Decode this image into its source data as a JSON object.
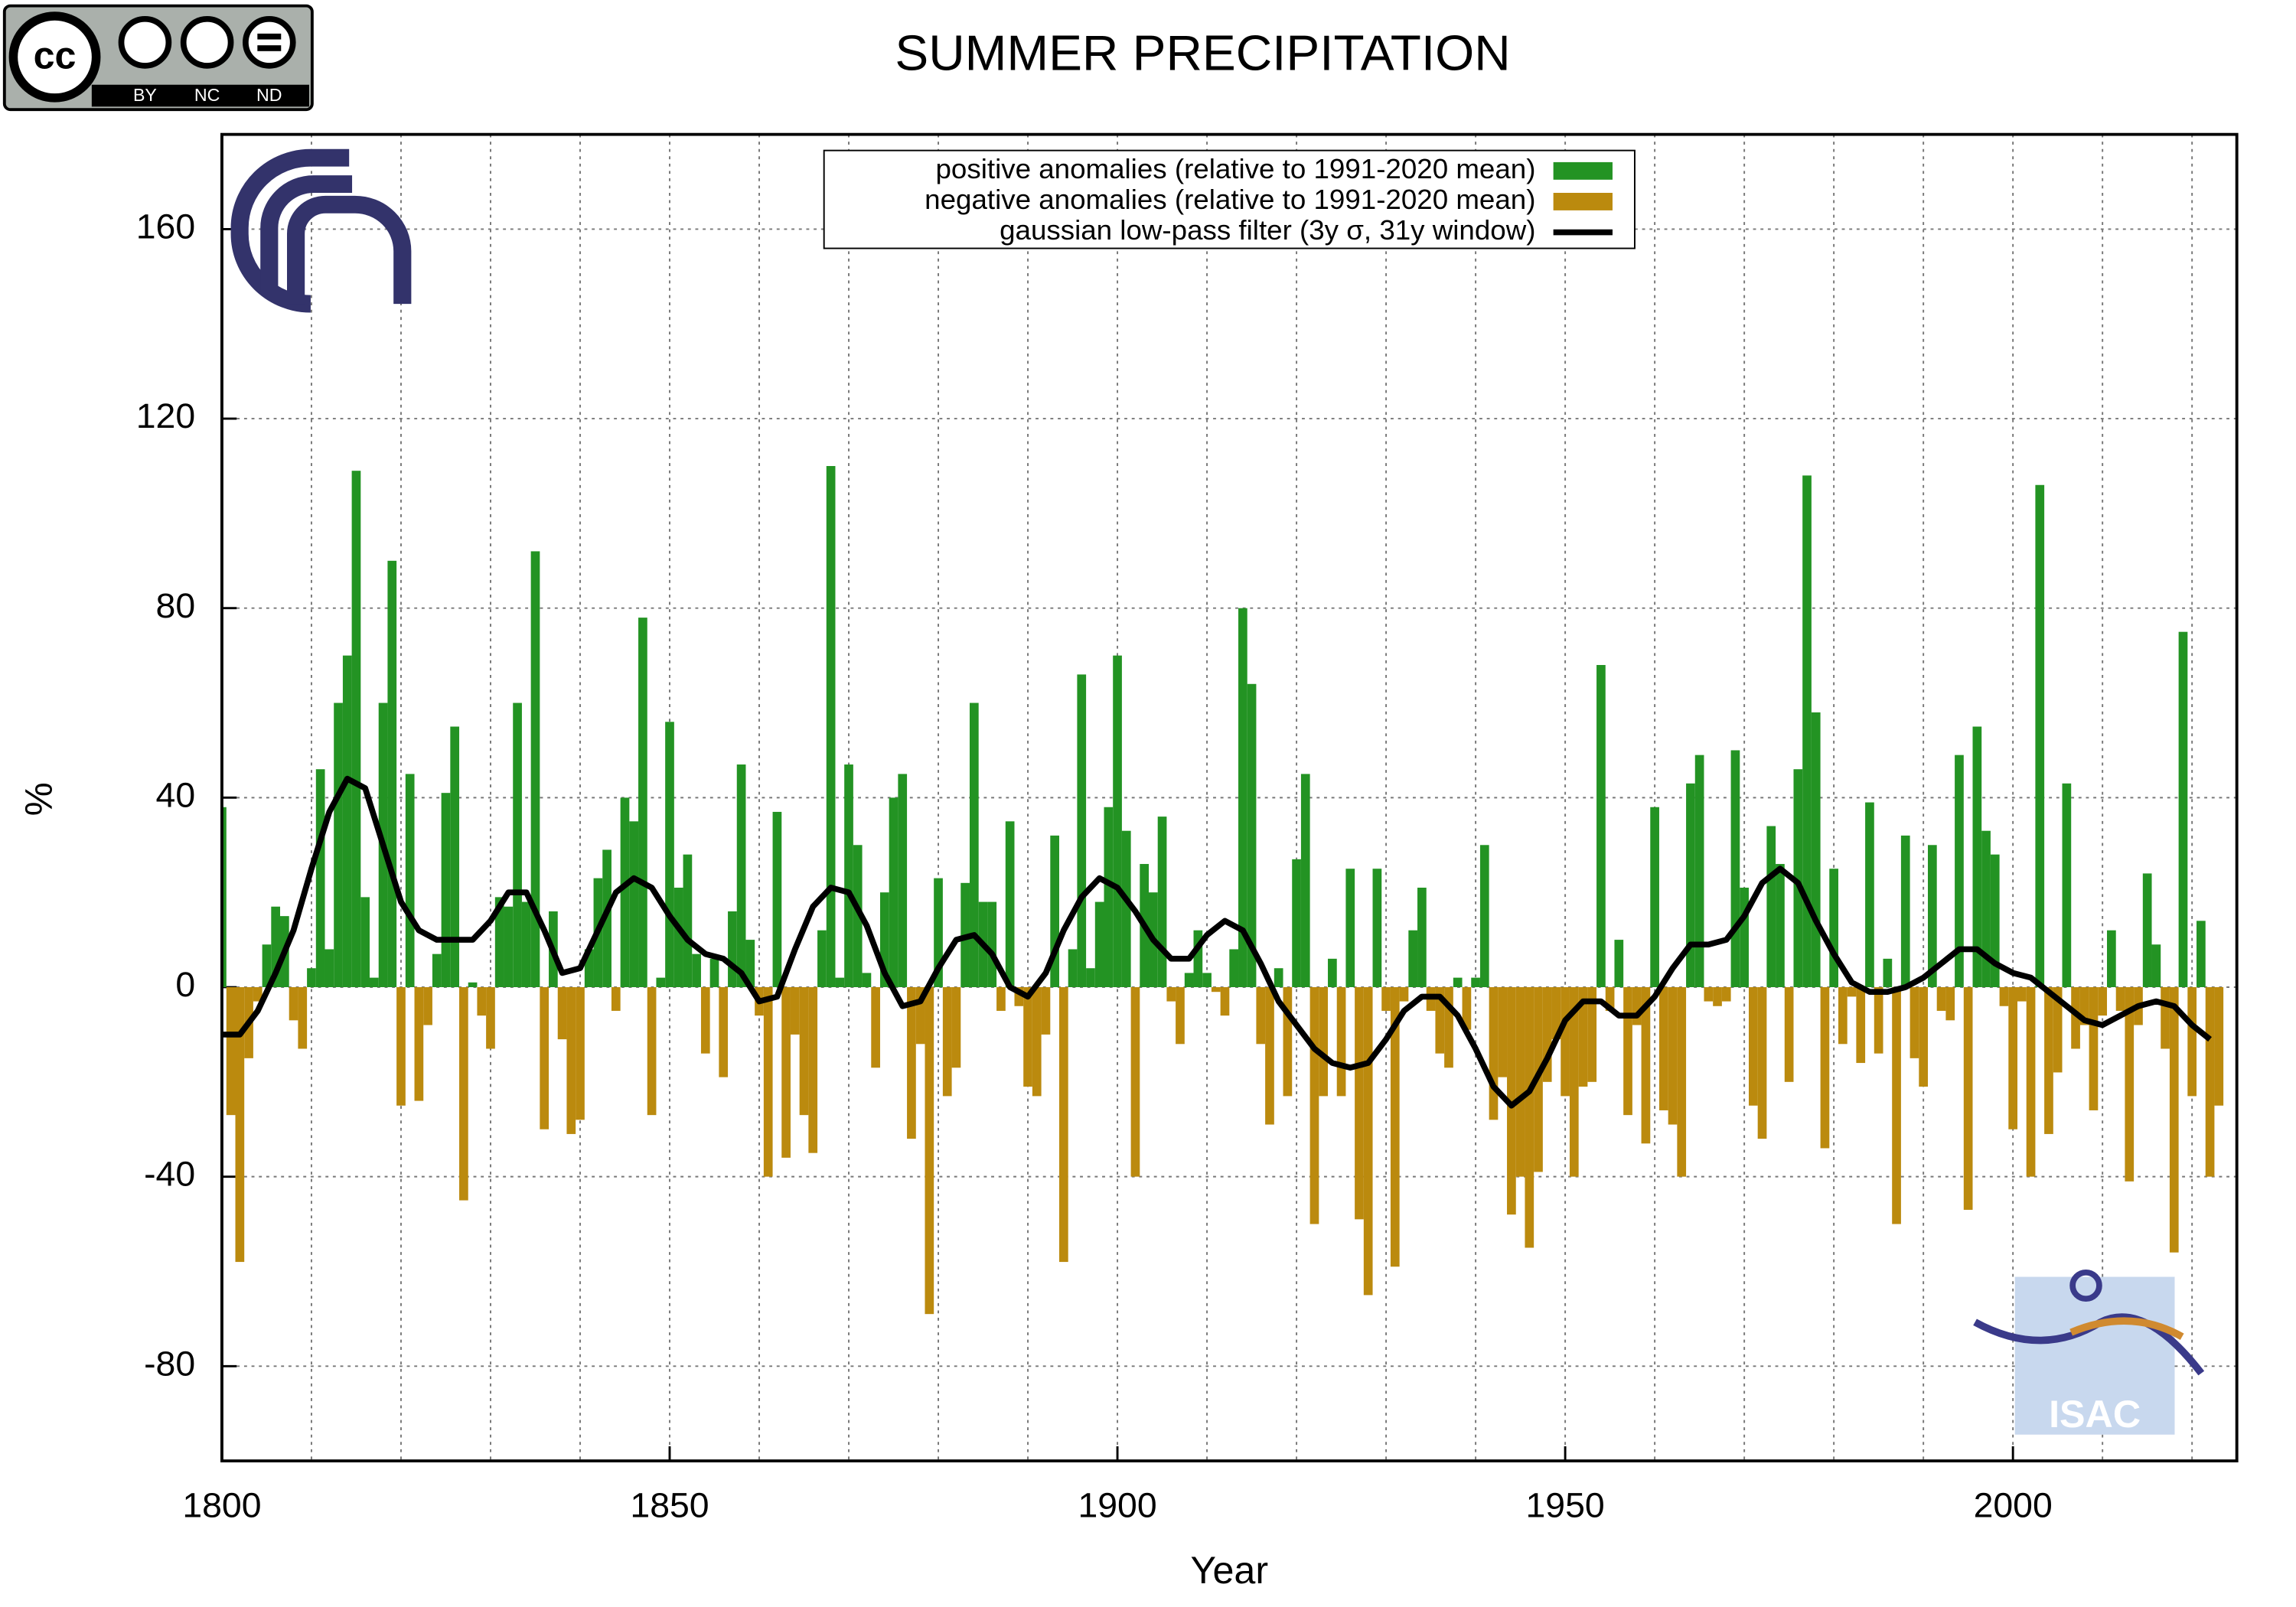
{
  "chart_data": {
    "type": "bar",
    "title": "SUMMER PRECIPITATION",
    "xlabel": "Year",
    "ylabel": "%",
    "xlim": [
      1800,
      2025
    ],
    "ylim": [
      -100,
      180
    ],
    "xticks": [
      1800,
      1850,
      1900,
      1950,
      2000
    ],
    "yticks": [
      -80,
      -40,
      0,
      40,
      80,
      120,
      160
    ],
    "grid": true,
    "legend_position": "top",
    "series": [
      {
        "name": "positive anomalies (relative to 1991-2020 mean)",
        "color": "#239323"
      },
      {
        "name": "negative anomalies (relative to 1991-2020 mean)",
        "color": "#bb8a0e"
      },
      {
        "name": "gaussian low-pass filter (3y σ, 31y window)",
        "color": "#000000"
      }
    ],
    "bars": {
      "x": [
        1800,
        1801,
        1802,
        1803,
        1804,
        1805,
        1806,
        1807,
        1808,
        1809,
        1810,
        1811,
        1812,
        1813,
        1814,
        1815,
        1816,
        1817,
        1818,
        1819,
        1820,
        1821,
        1822,
        1823,
        1824,
        1825,
        1826,
        1827,
        1828,
        1829,
        1830,
        1831,
        1832,
        1833,
        1834,
        1835,
        1836,
        1837,
        1838,
        1839,
        1840,
        1841,
        1842,
        1843,
        1844,
        1845,
        1846,
        1847,
        1848,
        1849,
        1850,
        1851,
        1852,
        1853,
        1854,
        1855,
        1856,
        1857,
        1858,
        1859,
        1860,
        1861,
        1862,
        1863,
        1864,
        1865,
        1866,
        1867,
        1868,
        1869,
        1870,
        1871,
        1872,
        1873,
        1874,
        1875,
        1876,
        1877,
        1878,
        1879,
        1880,
        1881,
        1882,
        1883,
        1884,
        1885,
        1886,
        1887,
        1888,
        1889,
        1890,
        1891,
        1892,
        1893,
        1894,
        1895,
        1896,
        1897,
        1898,
        1899,
        1900,
        1901,
        1902,
        1903,
        1904,
        1905,
        1906,
        1907,
        1908,
        1909,
        1910,
        1911,
        1912,
        1913,
        1914,
        1915,
        1916,
        1917,
        1918,
        1919,
        1920,
        1921,
        1922,
        1923,
        1924,
        1925,
        1926,
        1927,
        1928,
        1929,
        1930,
        1931,
        1932,
        1933,
        1934,
        1935,
        1936,
        1937,
        1938,
        1939,
        1940,
        1941,
        1942,
        1943,
        1944,
        1945,
        1946,
        1947,
        1948,
        1949,
        1950,
        1951,
        1952,
        1953,
        1954,
        1955,
        1956,
        1957,
        1958,
        1959,
        1960,
        1961,
        1962,
        1963,
        1964,
        1965,
        1966,
        1967,
        1968,
        1969,
        1970,
        1971,
        1972,
        1973,
        1974,
        1975,
        1976,
        1977,
        1978,
        1979,
        1980,
        1981,
        1982,
        1983,
        1984,
        1985,
        1986,
        1987,
        1988,
        1989,
        1990,
        1991,
        1992,
        1993,
        1994,
        1995,
        1996,
        1997,
        1998,
        1999,
        2000,
        2001,
        2002,
        2003,
        2004,
        2005,
        2006,
        2007,
        2008,
        2009,
        2010,
        2011,
        2012,
        2013,
        2014,
        2015,
        2016,
        2017,
        2018,
        2019,
        2020,
        2021,
        2022,
        2023
      ],
      "values": [
        38,
        -27,
        -58,
        -15,
        -3,
        9,
        17,
        15,
        -7,
        -13,
        4,
        46,
        8,
        60,
        70,
        109,
        19,
        2,
        60,
        90,
        -25,
        45,
        -24,
        -8,
        7,
        41,
        55,
        -45,
        1,
        -6,
        -13,
        19,
        17,
        60,
        18,
        92,
        -30,
        16,
        -11,
        -31,
        -28,
        8,
        23,
        29,
        -5,
        40,
        35,
        78,
        -27,
        2,
        56,
        21,
        28,
        7,
        -14,
        6,
        -19,
        16,
        47,
        10,
        -6,
        -40,
        37,
        -36,
        -10,
        -27,
        -35,
        12,
        110,
        2,
        47,
        30,
        3,
        -17,
        20,
        40,
        45,
        -32,
        -12,
        -69,
        23,
        -23,
        -17,
        22,
        60,
        18,
        18,
        -5,
        35,
        -4,
        -21,
        -23,
        -10,
        32,
        -58,
        8,
        66,
        4,
        18,
        38,
        70,
        33,
        -40,
        26,
        20,
        36,
        -3,
        -12,
        3,
        12,
        3,
        -1,
        -6,
        8,
        80,
        64,
        -12,
        -29,
        4,
        -23,
        27,
        45,
        -50,
        -23,
        6,
        -23,
        25,
        -49,
        -65,
        25,
        -5,
        -59,
        -3,
        12,
        21,
        -5,
        -14,
        -17,
        2,
        -9,
        2,
        30,
        -28,
        -19,
        -48,
        -40,
        -55,
        -39,
        -20,
        -11,
        -23,
        -40,
        -21,
        -20,
        68,
        -5,
        10,
        -27,
        -8,
        -33,
        38,
        -26,
        -29,
        -40,
        43,
        49,
        -3,
        -4,
        -3,
        50,
        21,
        -25,
        -32,
        34,
        26,
        -20,
        46,
        108,
        58,
        -34,
        25,
        -12,
        -2,
        -16,
        39,
        -14,
        6,
        -50,
        32,
        -15,
        -21,
        30,
        -5,
        -7,
        49,
        -47,
        55,
        33,
        28,
        -4,
        -30,
        -3,
        -40,
        106,
        -31,
        -18,
        43,
        -13,
        -8,
        -26,
        -6,
        12,
        -5,
        -41,
        -8,
        24,
        9,
        -13,
        -56,
        75,
        -23,
        14,
        -40,
        -25
      ]
    },
    "filter": {
      "x": [
        1800,
        1802,
        1804,
        1806,
        1808,
        1810,
        1812,
        1814,
        1816,
        1818,
        1820,
        1822,
        1824,
        1826,
        1828,
        1830,
        1832,
        1834,
        1836,
        1838,
        1840,
        1842,
        1844,
        1846,
        1848,
        1850,
        1852,
        1854,
        1856,
        1858,
        1860,
        1862,
        1864,
        1866,
        1868,
        1870,
        1872,
        1874,
        1876,
        1878,
        1880,
        1882,
        1884,
        1886,
        1888,
        1890,
        1892,
        1894,
        1896,
        1898,
        1900,
        1902,
        1904,
        1906,
        1908,
        1910,
        1912,
        1914,
        1916,
        1918,
        1920,
        1922,
        1924,
        1926,
        1928,
        1930,
        1932,
        1934,
        1936,
        1938,
        1940,
        1942,
        1944,
        1946,
        1948,
        1950,
        1952,
        1954,
        1956,
        1958,
        1960,
        1962,
        1964,
        1966,
        1968,
        1970,
        1972,
        1974,
        1976,
        1978,
        1980,
        1982,
        1984,
        1986,
        1988,
        1990,
        1992,
        1994,
        1996,
        1998,
        2000,
        2002,
        2004,
        2006,
        2008,
        2010,
        2012,
        2014,
        2016,
        2018,
        2020,
        2022
      ],
      "values": [
        -10,
        -10,
        -5,
        3,
        12,
        25,
        37,
        44,
        42,
        30,
        18,
        12,
        10,
        10,
        10,
        14,
        20,
        20,
        12,
        3,
        4,
        12,
        20,
        23,
        21,
        15,
        10,
        7,
        6,
        3,
        -3,
        -2,
        8,
        17,
        21,
        20,
        13,
        3,
        -4,
        -3,
        4,
        10,
        11,
        7,
        0,
        -2,
        3,
        12,
        19,
        23,
        21,
        16,
        10,
        6,
        6,
        11,
        14,
        12,
        5,
        -3,
        -8,
        -13,
        -16,
        -17,
        -16,
        -11,
        -5,
        -2,
        -2,
        -6,
        -13,
        -21,
        -25,
        -22,
        -15,
        -7,
        -3,
        -3,
        -6,
        -6,
        -2,
        4,
        9,
        9,
        10,
        15,
        22,
        25,
        22,
        14,
        7,
        1,
        -1,
        -1,
        0,
        2,
        5,
        8,
        8,
        5,
        3,
        2,
        -1,
        -4,
        -7,
        -8,
        -6,
        -4,
        -3,
        -4,
        -8,
        -11
      ]
    },
    "badge": {
      "cc": "cc",
      "by": "BY",
      "nc": "NC",
      "nd": "ND"
    },
    "logo_text": "ISAC"
  }
}
